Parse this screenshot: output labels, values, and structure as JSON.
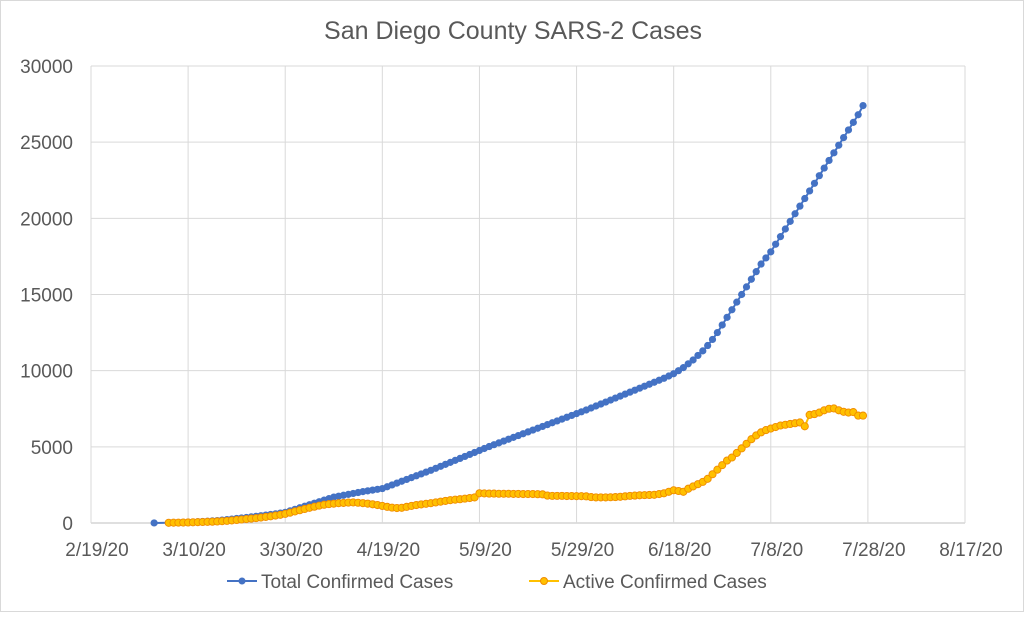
{
  "chart_data": {
    "type": "line",
    "title": "San Diego County SARS-2 Cases",
    "xlabel": "",
    "ylabel": "",
    "x_tick_labels": [
      "2/19/20",
      "3/10/20",
      "3/30/20",
      "4/19/20",
      "5/9/20",
      "5/29/20",
      "6/18/20",
      "7/8/20",
      "7/28/20",
      "8/17/20"
    ],
    "x_range_days_since_2_19_20": [
      0,
      180
    ],
    "x_tick_step_days": 20,
    "y_tick_labels": [
      "0",
      "5000",
      "10000",
      "15000",
      "20000",
      "25000",
      "30000"
    ],
    "ylim": [
      0,
      30000
    ],
    "grid": true,
    "legend_position": "bottom",
    "series_start_date": "3/3/20",
    "series_start_day": 13,
    "series": [
      {
        "name": "Total Confirmed Cases",
        "color": "#4472C4",
        "values": [
          3,
          null,
          null,
          20,
          25,
          30,
          40,
          50,
          60,
          80,
          100,
          120,
          140,
          160,
          190,
          220,
          260,
          300,
          330,
          360,
          400,
          440,
          480,
          520,
          560,
          600,
          650,
          700,
          800,
          900,
          1000,
          1100,
          1200,
          1300,
          1400,
          1500,
          1600,
          1700,
          1760,
          1820,
          1880,
          1940,
          2000,
          2060,
          2110,
          2160,
          2210,
          2260,
          2380,
          2500,
          2620,
          2740,
          2860,
          2980,
          3100,
          3220,
          3340,
          3460,
          3590,
          3720,
          3850,
          3980,
          4110,
          4240,
          4370,
          4500,
          4630,
          4760,
          4890,
          5020,
          5140,
          5260,
          5380,
          5500,
          5620,
          5740,
          5860,
          5980,
          6100,
          6220,
          6340,
          6460,
          6580,
          6700,
          6820,
          6940,
          7060,
          7180,
          7300,
          7420,
          7550,
          7680,
          7810,
          7940,
          8070,
          8200,
          8330,
          8460,
          8590,
          8720,
          8850,
          8980,
          9110,
          9240,
          9370,
          9500,
          9650,
          9800,
          10000,
          10200,
          10450,
          10700,
          11000,
          11300,
          11650,
          12050,
          12500,
          13000,
          13500,
          14000,
          14500,
          15000,
          15500,
          16000,
          16500,
          17000,
          17400,
          17800,
          18300,
          18800,
          19300,
          19800,
          20300,
          20800,
          21300,
          21800,
          22300,
          22800,
          23300,
          23800,
          24300,
          24800,
          25300,
          25800,
          26300,
          26800,
          27400
        ]
      },
      {
        "name": "Active Confirmed Cases",
        "color": "#FFC000",
        "values": [
          null,
          null,
          null,
          15,
          20,
          25,
          30,
          35,
          45,
          55,
          65,
          75,
          85,
          100,
          120,
          140,
          170,
          200,
          230,
          260,
          290,
          320,
          360,
          400,
          440,
          490,
          540,
          600,
          680,
          760,
          840,
          920,
          1000,
          1070,
          1140,
          1200,
          1240,
          1270,
          1300,
          1320,
          1340,
          1350,
          1330,
          1300,
          1270,
          1230,
          1180,
          1120,
          1060,
          1010,
          980,
          1000,
          1060,
          1120,
          1180,
          1220,
          1260,
          1300,
          1350,
          1400,
          1450,
          1500,
          1530,
          1560,
          1600,
          1640,
          1680,
          1950,
          1940,
          1930,
          1930,
          1920,
          1920,
          1920,
          1910,
          1910,
          1900,
          1900,
          1900,
          1890,
          1880,
          1800,
          1780,
          1780,
          1780,
          1770,
          1770,
          1760,
          1760,
          1750,
          1700,
          1680,
          1680,
          1680,
          1690,
          1700,
          1720,
          1750,
          1780,
          1800,
          1820,
          1830,
          1840,
          1850,
          1900,
          1950,
          2050,
          2150,
          2100,
          2050,
          2250,
          2400,
          2550,
          2700,
          2900,
          3200,
          3500,
          3800,
          4100,
          4300,
          4600,
          4900,
          5200,
          5500,
          5750,
          5950,
          6100,
          6200,
          6300,
          6400,
          6450,
          6500,
          6550,
          6600,
          6350,
          7100,
          7150,
          7250,
          7400,
          7500,
          7520,
          7400,
          7300,
          7250,
          7280,
          7050,
          7050
        ]
      }
    ]
  }
}
